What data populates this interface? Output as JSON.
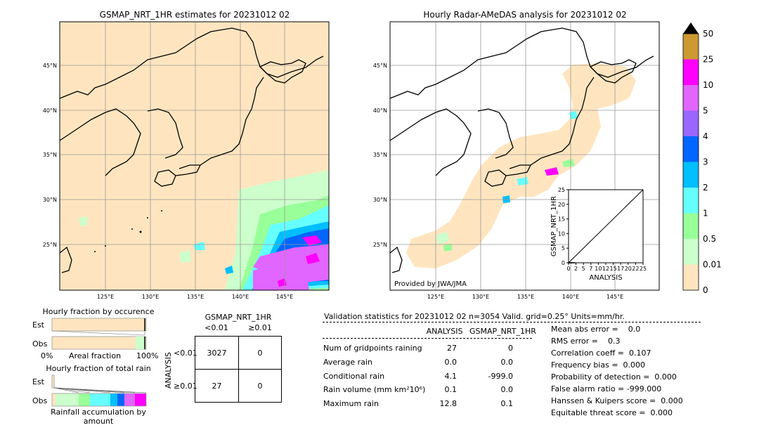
{
  "left_map": {
    "title": "GSMAP_NRT_1HR estimates for 20231012 02",
    "lat_labels": [
      "45°N",
      "40°N",
      "35°N",
      "30°N",
      "25°N"
    ],
    "lon_labels": [
      "125°E",
      "130°E",
      "135°E",
      "140°E",
      "145°E"
    ]
  },
  "right_map": {
    "title": "Hourly Radar-AMeDAS analysis for 20231012 02",
    "lat_labels": [
      "45°N",
      "40°N",
      "35°N",
      "30°N",
      "25°N"
    ],
    "lon_labels": [
      "125°E",
      "130°E",
      "135°E",
      "140°E",
      "145°E"
    ],
    "credit": "Provided by JWA/JMA"
  },
  "colorbar": {
    "labels": [
      "50",
      "25",
      "10",
      "5",
      "4",
      "3",
      "2",
      "1",
      "0.5",
      "0.01",
      "0"
    ],
    "colors": [
      "#000000",
      "#cc9933",
      "#ff00ff",
      "#e066ff",
      "#9966ff",
      "#0066ff",
      "#00bfff",
      "#66ffff",
      "#99ff99",
      "#ccffcc",
      "#ffe5bf"
    ]
  },
  "chart_data": [
    {
      "type": "scatter",
      "title": "",
      "xlabel": "ANALYSIS",
      "ylabel": "GSMAP_NRT_1HR",
      "xlim": [
        0,
        25
      ],
      "ylim": [
        0,
        25
      ],
      "xticks": [
        "0",
        "2",
        "5",
        "7",
        "10",
        "12",
        "15",
        "17",
        "20",
        "22",
        "25"
      ],
      "yticks": [
        "0",
        "5",
        "10",
        "15",
        "20",
        "25"
      ],
      "reference_line": [
        [
          0,
          0
        ],
        [
          25,
          25
        ]
      ],
      "points": [
        [
          0.0,
          0.0
        ],
        [
          0.1,
          0.0
        ],
        [
          0.2,
          0.0
        ],
        [
          0.4,
          0.1
        ],
        [
          0.7,
          0.0
        ],
        [
          1.0,
          0.0
        ],
        [
          1.5,
          0.0
        ],
        [
          2.0,
          0.0
        ]
      ]
    },
    {
      "type": "bar",
      "title": "Hourly fraction by occurence",
      "categories": [
        "Est",
        "Obs"
      ],
      "values": [
        100,
        100
      ],
      "xlabel": "Areal fraction",
      "x_left": "0%",
      "x_right": "100%"
    },
    {
      "type": "bar",
      "title": "Hourly fraction of total rain",
      "categories": [
        "Est",
        "Obs"
      ],
      "xlabel": "Rainfall accumulation by amount"
    }
  ],
  "contingency": {
    "title": "GSMAP_NRT_1HR",
    "col_headers": [
      "<0.01",
      "≥0.01"
    ],
    "row_axis": "ANALYSIS",
    "row_headers": [
      "<0.01",
      "≥0.01"
    ],
    "cells": [
      [
        "3027",
        "0"
      ],
      [
        "27",
        "0"
      ]
    ]
  },
  "validation": {
    "header": "Validation statistics for 20231012 02  n=3054 Valid. grid=0.25° Units=mm/hr.",
    "col_analysis": "ANALYSIS",
    "col_gsmap": "GSMAP_NRT_1HR",
    "rows": [
      {
        "label": "Num of gridpoints raining",
        "a": "27",
        "g": "0"
      },
      {
        "label": "Average rain",
        "a": "0.0",
        "g": "0.0"
      },
      {
        "label": "Conditional rain",
        "a": "4.1",
        "g": "-999.0"
      },
      {
        "label": "Rain volume (mm km²10⁶)",
        "a": "0.1",
        "g": "0.0"
      },
      {
        "label": "Maximum rain",
        "a": "12.8",
        "g": "0.1"
      }
    ],
    "scores": [
      "Mean abs error =    0.0",
      "RMS error =    0.3",
      "Correlation coeff =  0.107",
      "Frequency bias =  0.000",
      "Probability of detection =  0.000",
      "False alarm ratio = -999.000",
      "Hanssen & Kuipers score =  0.000",
      "Equitable threat score =  0.000"
    ]
  }
}
